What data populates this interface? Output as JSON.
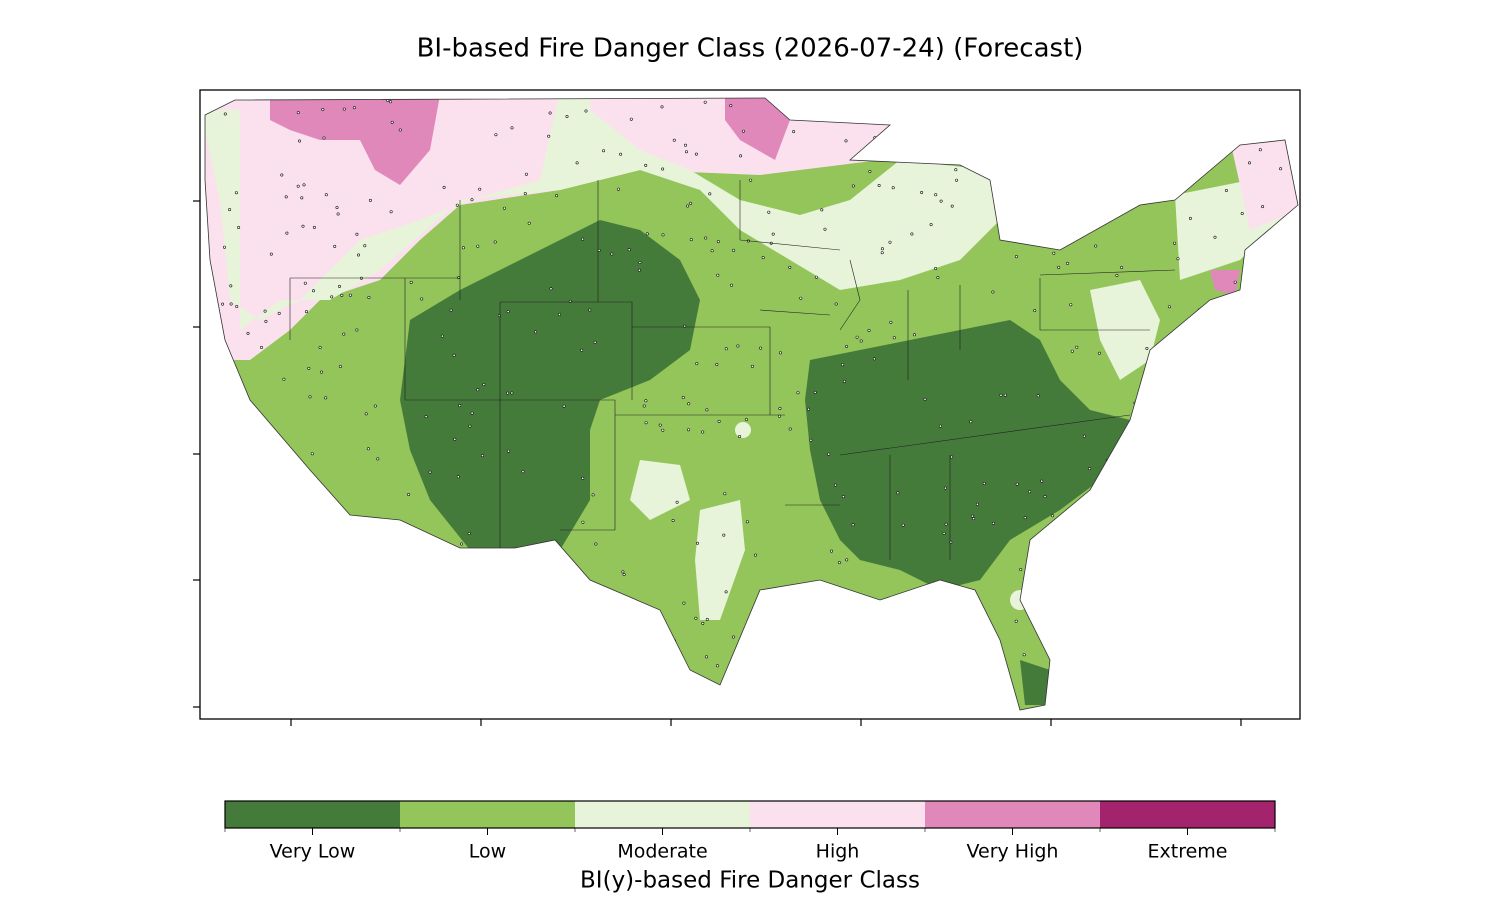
{
  "title": "BI-based Fire Danger Class (2026-07-24) (Forecast)",
  "colorbar": {
    "label": "BI(y)-based Fire Danger Class",
    "classes": [
      {
        "name": "Very Low",
        "color": "#457b3a"
      },
      {
        "name": "Low",
        "color": "#93c55b"
      },
      {
        "name": "Moderate",
        "color": "#e8f4d9"
      },
      {
        "name": "High",
        "color": "#fbe0ee"
      },
      {
        "name": "Very High",
        "color": "#e088ba"
      },
      {
        "name": "Extreme",
        "color": "#a4236d"
      }
    ]
  }
}
